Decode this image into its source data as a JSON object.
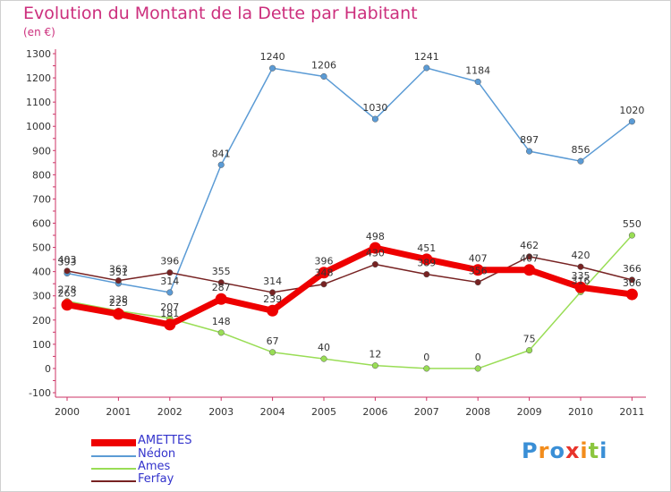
{
  "header": {
    "title": "Evolution du Montant de la Dette par Habitant",
    "subtitle": "(en €)"
  },
  "logo": {
    "text": "Proxiti"
  },
  "chart_data": {
    "type": "line",
    "x": [
      "2000",
      "2001",
      "2002",
      "2003",
      "2004",
      "2005",
      "2006",
      "2007",
      "2008",
      "2009",
      "2010",
      "2011"
    ],
    "y_ticks": [
      -100,
      0,
      100,
      200,
      300,
      400,
      500,
      600,
      700,
      800,
      900,
      1000,
      1100,
      1200,
      1300
    ],
    "ylim": [
      -100,
      1300
    ],
    "grid": false,
    "legend_position": "bottom-left",
    "series": [
      {
        "name": "AMETTES",
        "color": "#ee0000",
        "values": [
          263,
          225,
          181,
          287,
          239,
          396,
          498,
          451,
          407,
          407,
          335,
          306
        ]
      },
      {
        "name": "Nédon",
        "color": "#5b9bd5",
        "values": [
          393,
          351,
          314,
          841,
          1240,
          1206,
          1030,
          1241,
          1184,
          897,
          856,
          1020
        ]
      },
      {
        "name": "Ames",
        "color": "#99dd55",
        "values": [
          278,
          238,
          207,
          148,
          67,
          40,
          12,
          0,
          0,
          75,
          316,
          550
        ]
      },
      {
        "name": "Ferfay",
        "color": "#772222",
        "values": [
          403,
          363,
          396,
          355,
          314,
          348,
          430,
          389,
          356,
          462,
          420,
          366
        ]
      }
    ],
    "data_labels": [
      [
        "263",
        "225",
        "181",
        "287",
        "239",
        "396",
        "498",
        "451",
        "407",
        "407",
        "335",
        "306"
      ],
      [
        "393",
        "351",
        "314",
        "841",
        "1240",
        "1206",
        "1030",
        "1241",
        "1184",
        "897",
        "856",
        "1020"
      ],
      [
        "278",
        "238",
        "207",
        "148",
        "67",
        "40",
        "12",
        "0",
        "0",
        "75",
        "316",
        "550"
      ],
      [
        "403",
        "363",
        "396",
        "355",
        "314",
        "348",
        "430",
        "389",
        "356",
        "462",
        "420",
        "366"
      ]
    ]
  }
}
